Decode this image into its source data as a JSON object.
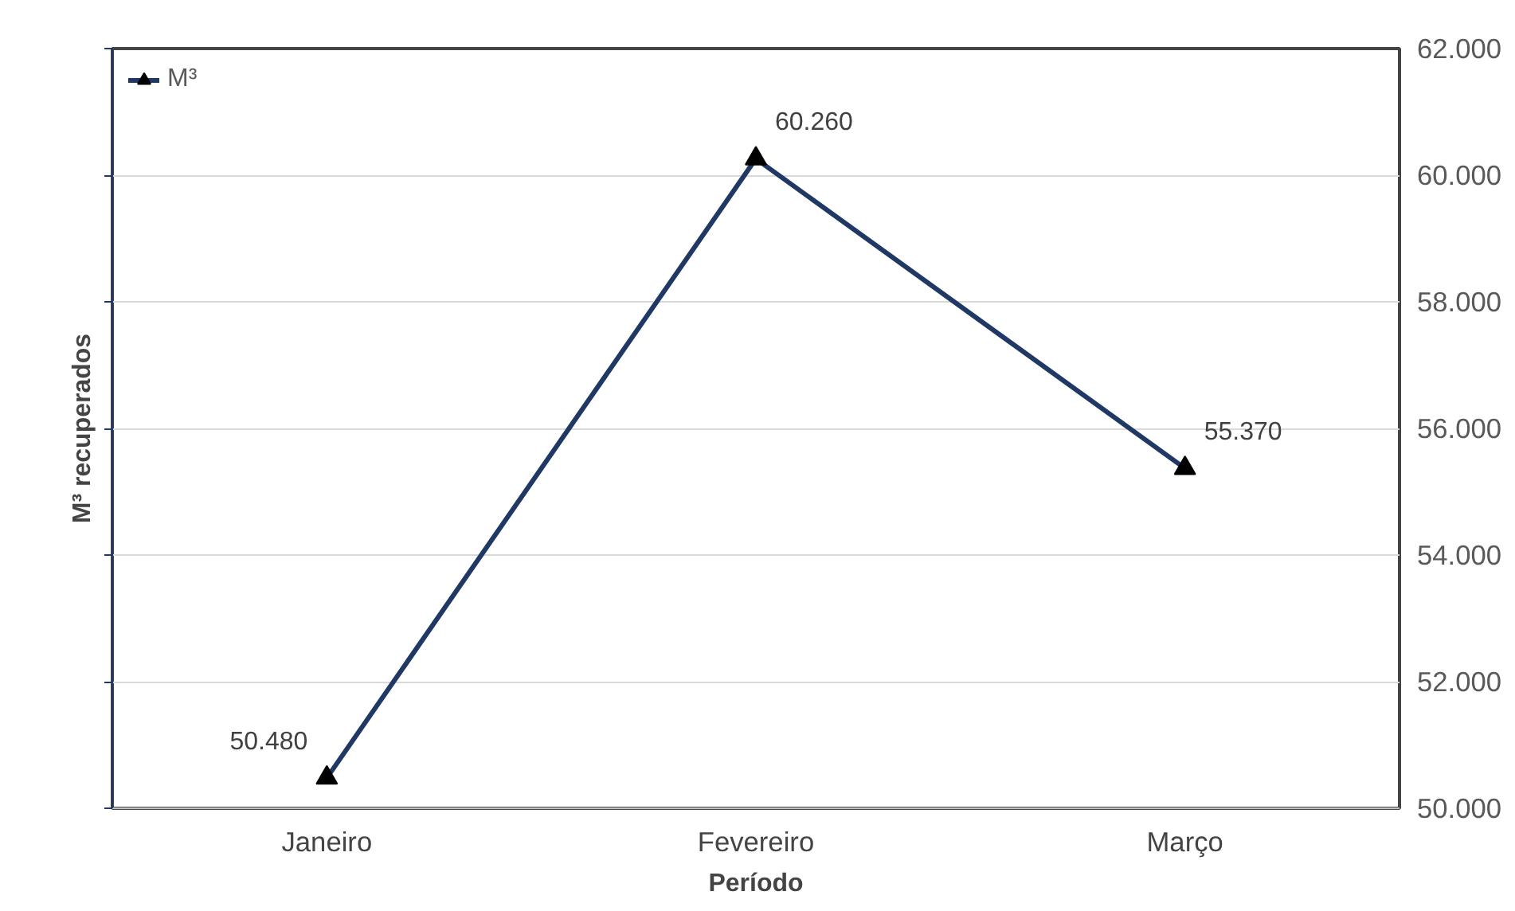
{
  "chart_data": {
    "type": "line",
    "xlabel": "Período",
    "ylabel": "M³ recuperados",
    "categories": [
      "Janeiro",
      "Fevereiro",
      "Março"
    ],
    "series": [
      {
        "name": "M³",
        "color": "#1f3864",
        "values": [
          50480,
          60260,
          55370
        ],
        "value_labels": [
          "50.480",
          "60.260",
          "55.370"
        ]
      }
    ],
    "ylim": [
      50000,
      62000
    ],
    "yticks": [
      {
        "value": 50000,
        "label": "50.000"
      },
      {
        "value": 52000,
        "label": "52.000"
      },
      {
        "value": 54000,
        "label": "54.000"
      },
      {
        "value": 56000,
        "label": "56.000"
      },
      {
        "value": 58000,
        "label": "58.000"
      },
      {
        "value": 60000,
        "label": "60.000"
      },
      {
        "value": 62000,
        "label": "62.000"
      }
    ],
    "grid": "y",
    "legend": "top left",
    "marker": "triangle",
    "line_style": "solid"
  }
}
